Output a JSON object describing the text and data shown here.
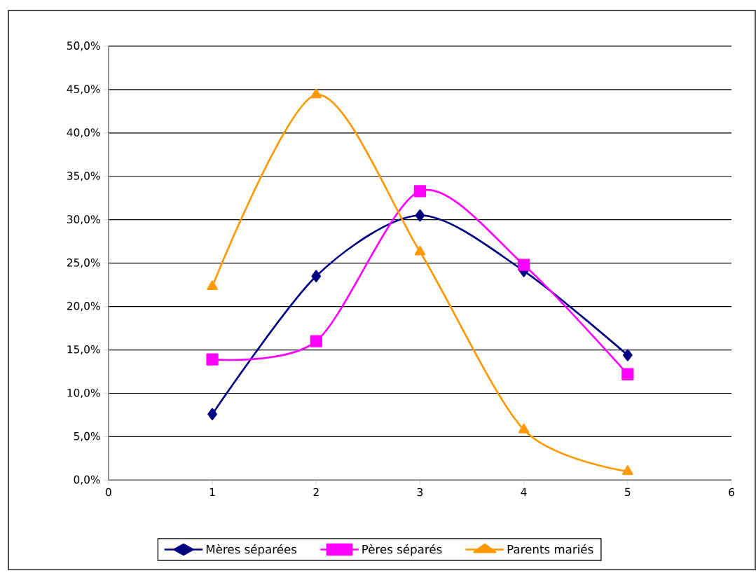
{
  "chart_data": {
    "type": "line",
    "x": [
      1,
      2,
      3,
      4,
      5
    ],
    "series": [
      {
        "name": "Mères séparées",
        "color": "#000080",
        "marker": "diamond",
        "values": [
          7.6,
          23.5,
          30.5,
          24.1,
          14.4
        ]
      },
      {
        "name": "Pères séparés",
        "color": "#ff00ff",
        "marker": "square",
        "values": [
          13.9,
          16.0,
          33.3,
          24.8,
          12.2
        ]
      },
      {
        "name": "Parents mariés",
        "color": "#ff9900",
        "marker": "triangle",
        "values": [
          22.3,
          44.4,
          26.3,
          5.8,
          1.0
        ]
      }
    ],
    "xlim": [
      0,
      6
    ],
    "xticks": [
      0,
      1,
      2,
      3,
      4,
      5,
      6
    ],
    "ylim": [
      0,
      50
    ],
    "yticks": [
      {
        "value": 0,
        "label": "0,0%"
      },
      {
        "value": 5,
        "label": "5,0%"
      },
      {
        "value": 10,
        "label": "10,0%"
      },
      {
        "value": 15,
        "label": "15,0%"
      },
      {
        "value": 20,
        "label": "20,0%"
      },
      {
        "value": 25,
        "label": "25,0%"
      },
      {
        "value": 30,
        "label": "30,0%"
      },
      {
        "value": 35,
        "label": "35,0%"
      },
      {
        "value": 40,
        "label": "40,0%"
      },
      {
        "value": 45,
        "label": "45,0%"
      },
      {
        "value": 50,
        "label": "50,0%"
      }
    ],
    "grid": "y",
    "legend": "bottom",
    "line_style": "solid"
  }
}
